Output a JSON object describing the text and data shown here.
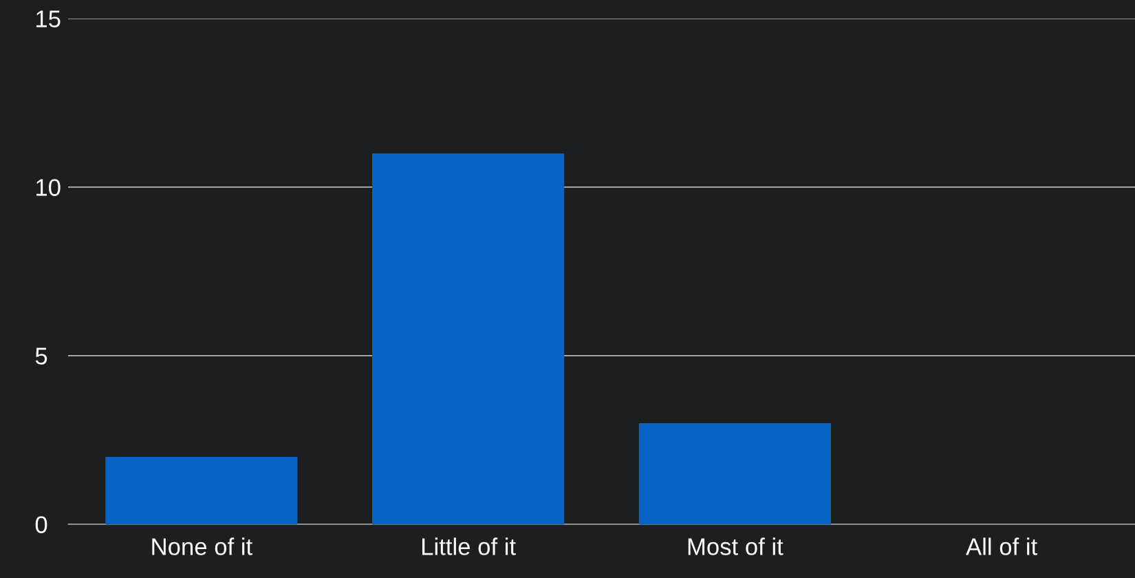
{
  "chart_data": {
    "type": "bar",
    "categories": [
      "None of it",
      "Little of it",
      "Most of it",
      "All of it"
    ],
    "values": [
      2,
      11,
      3,
      0
    ],
    "color": "#0763c4",
    "ylim": [
      0,
      15
    ],
    "yticks": [
      0,
      5,
      10,
      15
    ],
    "grid": "y"
  }
}
